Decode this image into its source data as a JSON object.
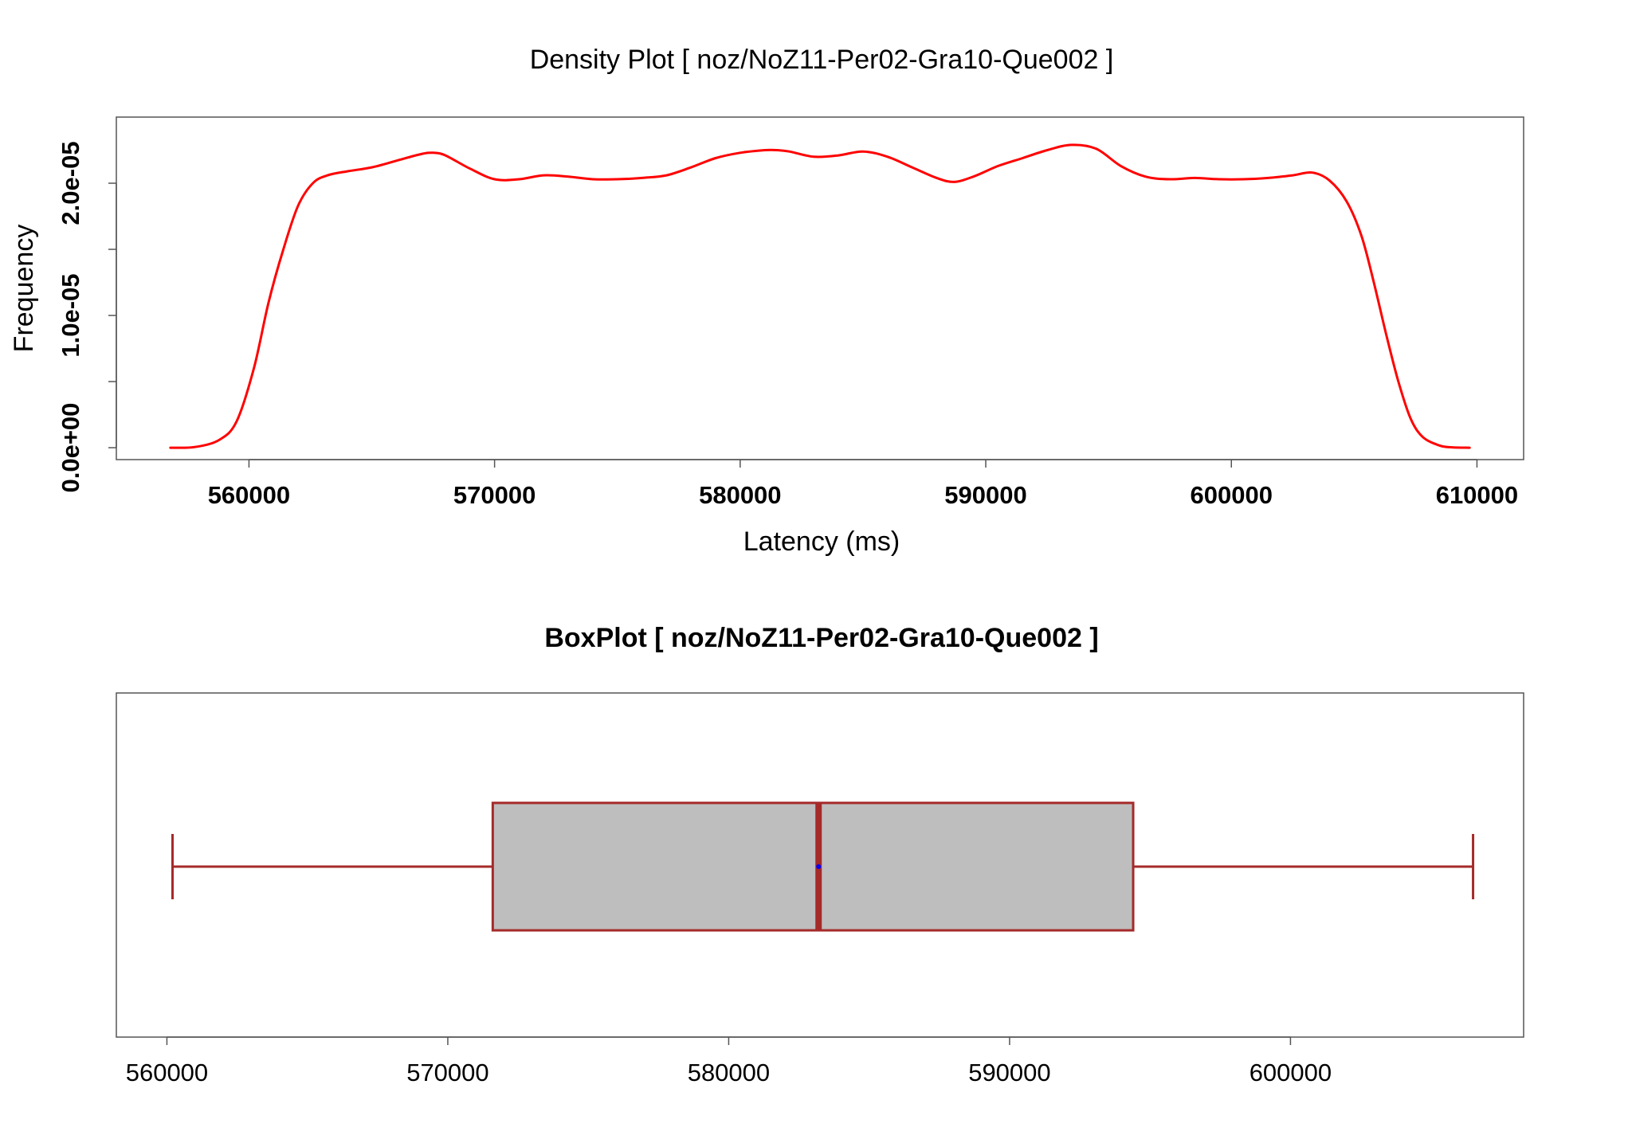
{
  "colors": {
    "density_line": "#ff0000",
    "box_border": "#a52a2a",
    "box_fill": "#bebebe",
    "mean_point": "#0000ff",
    "frame": "#555555"
  },
  "chart_data": [
    {
      "type": "line",
      "title": "Density Plot [ noz/NoZ11-Per02-Gra10-Que002 ]",
      "xlabel": "Latency (ms)",
      "ylabel": "Frequency",
      "xlim": [
        554600,
        611900
      ],
      "ylim": [
        -9e-07,
        2.5e-05
      ],
      "x_ticks": [
        560000,
        570000,
        580000,
        590000,
        600000,
        610000
      ],
      "x_tick_labels": [
        "560000",
        "570000",
        "580000",
        "590000",
        "600000",
        "610000"
      ],
      "y_ticks": [
        0,
        5e-06,
        1e-05,
        1.5e-05,
        2e-05
      ],
      "y_tick_labels": [
        "0.0e+00",
        "",
        "1.0e-05",
        "",
        "2.0e-05"
      ],
      "grid": false,
      "series": [
        {
          "x": [
            556800,
            557800,
            558800,
            559500,
            560200,
            560800,
            561400,
            562000,
            562600,
            563200,
            564000,
            565000,
            566000,
            567000,
            567500,
            568000,
            569000,
            570000,
            571000,
            572000,
            573000,
            574000,
            575000,
            576000,
            577000,
            578000,
            579000,
            580000,
            581000,
            581500,
            582000,
            583000,
            584000,
            585000,
            586000,
            587000,
            588000,
            588700,
            589500,
            590500,
            591500,
            592500,
            593500,
            594500,
            595500,
            596500,
            597500,
            598500,
            599500,
            600500,
            601500,
            602500,
            603300,
            604000,
            604700,
            605300,
            605800,
            606300,
            606800,
            607300,
            607800,
            608500,
            609000,
            609700
          ],
          "y": [
            0,
            5e-08,
            6e-07,
            2e-06,
            6e-06,
            1.1e-05,
            1.5e-05,
            1.83e-05,
            2e-05,
            2.06e-05,
            2.09e-05,
            2.12e-05,
            2.17e-05,
            2.22e-05,
            2.23e-05,
            2.21e-05,
            2.11e-05,
            2.03e-05,
            2.03e-05,
            2.06e-05,
            2.05e-05,
            2.03e-05,
            2.03e-05,
            2.04e-05,
            2.06e-05,
            2.12e-05,
            2.19e-05,
            2.23e-05,
            2.25e-05,
            2.25e-05,
            2.24e-05,
            2.2e-05,
            2.21e-05,
            2.24e-05,
            2.2e-05,
            2.12e-05,
            2.04e-05,
            2.01e-05,
            2.05e-05,
            2.13e-05,
            2.19e-05,
            2.25e-05,
            2.29e-05,
            2.26e-05,
            2.13e-05,
            2.05e-05,
            2.03e-05,
            2.04e-05,
            2.03e-05,
            2.03e-05,
            2.04e-05,
            2.06e-05,
            2.08e-05,
            2.02e-05,
            1.86e-05,
            1.6e-05,
            1.25e-05,
            8.6e-06,
            5e-06,
            2.2e-06,
            8e-07,
            1.5e-07,
            3e-08,
            0
          ]
        }
      ]
    },
    {
      "type": "box",
      "title": "BoxPlot [ noz/NoZ11-Per02-Gra10-Que002 ]",
      "orientation": "horizontal",
      "xlim": [
        558200,
        608300
      ],
      "x_ticks": [
        560000,
        570000,
        580000,
        590000,
        600000
      ],
      "x_tick_labels": [
        "560000",
        "570000",
        "580000",
        "590000",
        "600000"
      ],
      "whisker_low": 560200,
      "q1": 571600,
      "median": 583200,
      "mean": 583200,
      "q3": 594400,
      "whisker_high": 606500
    }
  ]
}
